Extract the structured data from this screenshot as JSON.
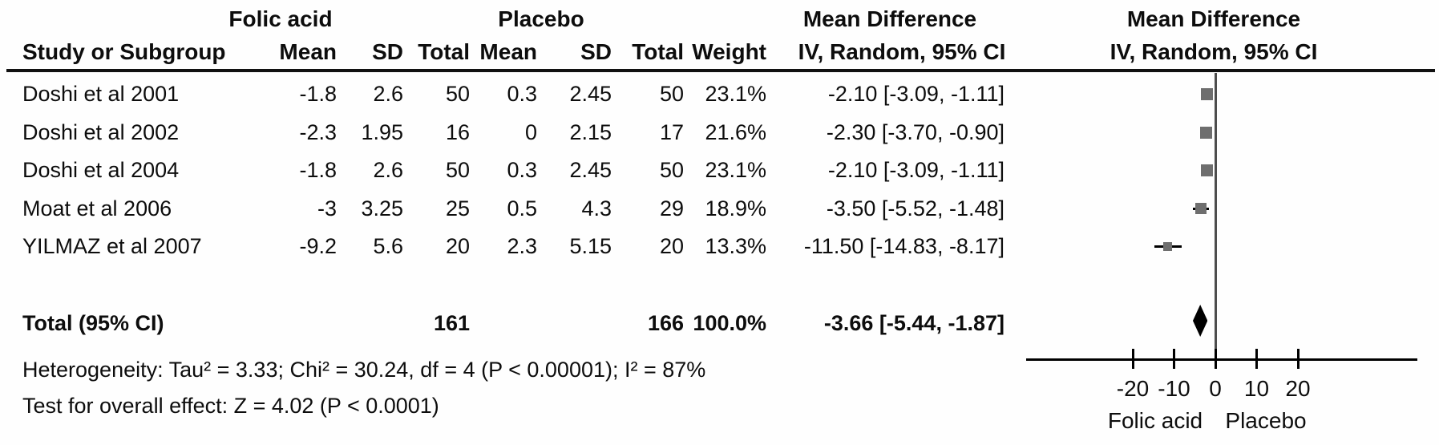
{
  "table": {
    "group_headers": {
      "folic": "Folic acid",
      "placebo": "Placebo",
      "mean_difference": "Mean Difference",
      "ci_model": "IV, Random, 95% CI"
    },
    "headers": {
      "study": "Study or Subgroup",
      "mean": "Mean",
      "sd": "SD",
      "total": "Total",
      "weight": "Weight",
      "ci": "IV, Random, 95% CI"
    },
    "heterogeneity": "Heterogeneity: Tau² = 3.33; Chi² = 30.24, df = 4 (P < 0.00001); I² = 87%",
    "overall_effect": "Test for overall effect: Z = 4.02 (P < 0.0001)"
  },
  "chart_data": {
    "type": "forest",
    "effect_measure": "Mean Difference",
    "model": "IV, Random, 95% CI",
    "studies": [
      {
        "name": "Doshi et al 2001",
        "folic_mean": "-1.8",
        "folic_sd": "2.6",
        "folic_total": "50",
        "placebo_mean": "0.3",
        "placebo_sd": "2.45",
        "placebo_total": "50",
        "weight": "23.1%",
        "ci_text": "-2.10 [-3.09, -1.11]",
        "md": -2.1,
        "ci_low": -3.09,
        "ci_high": -1.11,
        "weight_pct": 23.1
      },
      {
        "name": "Doshi et al 2002",
        "folic_mean": "-2.3",
        "folic_sd": "1.95",
        "folic_total": "16",
        "placebo_mean": "0",
        "placebo_sd": "2.15",
        "placebo_total": "17",
        "weight": "21.6%",
        "ci_text": "-2.30 [-3.70, -0.90]",
        "md": -2.3,
        "ci_low": -3.7,
        "ci_high": -0.9,
        "weight_pct": 21.6
      },
      {
        "name": "Doshi et al 2004",
        "folic_mean": "-1.8",
        "folic_sd": "2.6",
        "folic_total": "50",
        "placebo_mean": "0.3",
        "placebo_sd": "2.45",
        "placebo_total": "50",
        "weight": "23.1%",
        "ci_text": "-2.10 [-3.09, -1.11]",
        "md": -2.1,
        "ci_low": -3.09,
        "ci_high": -1.11,
        "weight_pct": 23.1
      },
      {
        "name": "Moat et al 2006",
        "folic_mean": "-3",
        "folic_sd": "3.25",
        "folic_total": "25",
        "placebo_mean": "0.5",
        "placebo_sd": "4.3",
        "placebo_total": "29",
        "weight": "18.9%",
        "ci_text": "-3.50 [-5.52, -1.48]",
        "md": -3.5,
        "ci_low": -5.52,
        "ci_high": -1.48,
        "weight_pct": 18.9
      },
      {
        "name": "YILMAZ et al 2007",
        "folic_mean": "-9.2",
        "folic_sd": "5.6",
        "folic_total": "20",
        "placebo_mean": "2.3",
        "placebo_sd": "5.15",
        "placebo_total": "20",
        "weight": "13.3%",
        "ci_text": "-11.50 [-14.83, -8.17]",
        "md": -11.5,
        "ci_low": -14.83,
        "ci_high": -8.17,
        "weight_pct": 13.3
      }
    ],
    "total": {
      "label": "Total (95% CI)",
      "folic_total": "161",
      "placebo_total": "166",
      "weight": "100.0%",
      "ci_text": "-3.66 [-5.44, -1.87]",
      "md": -3.66,
      "ci_low": -5.44,
      "ci_high": -1.87
    },
    "axis": {
      "ticks": [
        -20,
        -10,
        0,
        10,
        20
      ],
      "xlim": [
        -46,
        49
      ],
      "left_label": "Folic acid",
      "right_label": "Placebo"
    },
    "colors": {
      "square": "#6e6e6e",
      "diamond": "#000000",
      "ci_line": "#000000",
      "axis_line": "#000000",
      "zero_line": "#4d4d4d"
    }
  }
}
